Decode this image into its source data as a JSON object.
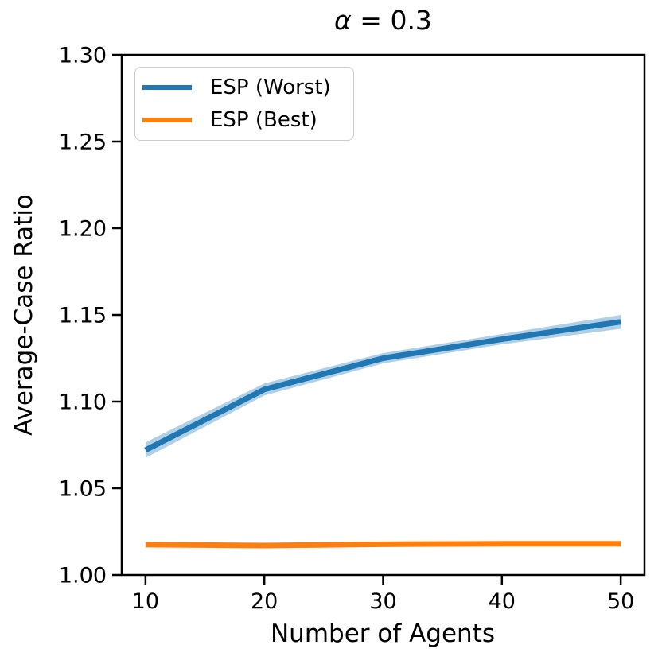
{
  "figure": {
    "title_symbol": "α",
    "title_rest": " = 0.3",
    "xlabel": "Number of Agents",
    "ylabel": "Average-Case Ratio"
  },
  "legend": {
    "position": "upper left",
    "entries": [
      {
        "label": "ESP (Worst)",
        "color": "#1f77b4"
      },
      {
        "label": "ESP (Best)",
        "color": "#ff7f0e"
      }
    ]
  },
  "colors": {
    "axes": "#000000",
    "text": "#000000",
    "background": "#ffffff",
    "blue_series": "#1f77b4",
    "orange_series": "#ff7f0e"
  },
  "chart_data": {
    "type": "line",
    "title": "α = 0.3",
    "xlabel": "Number of Agents",
    "ylabel": "Average-Case Ratio",
    "x": [
      10,
      20,
      30,
      40,
      50
    ],
    "series": [
      {
        "name": "ESP (Worst)",
        "color": "#1f77b4",
        "values": [
          1.072,
          1.107,
          1.125,
          1.136,
          1.146
        ],
        "band_halfwidth": [
          0.0045,
          0.0035,
          0.003,
          0.003,
          0.004
        ],
        "band_alpha": 0.35
      },
      {
        "name": "ESP (Best)",
        "color": "#ff7f0e",
        "values": [
          1.0175,
          1.017,
          1.0177,
          1.018,
          1.018
        ]
      }
    ],
    "xlim": [
      8,
      52
    ],
    "ylim": [
      1.0,
      1.3
    ],
    "xticks": [
      10,
      20,
      30,
      40,
      50
    ],
    "yticks": [
      1.0,
      1.05,
      1.1,
      1.15,
      1.2,
      1.25,
      1.3
    ],
    "ytick_format_decimals": 2,
    "grid": false,
    "legend_position": "upper left"
  }
}
